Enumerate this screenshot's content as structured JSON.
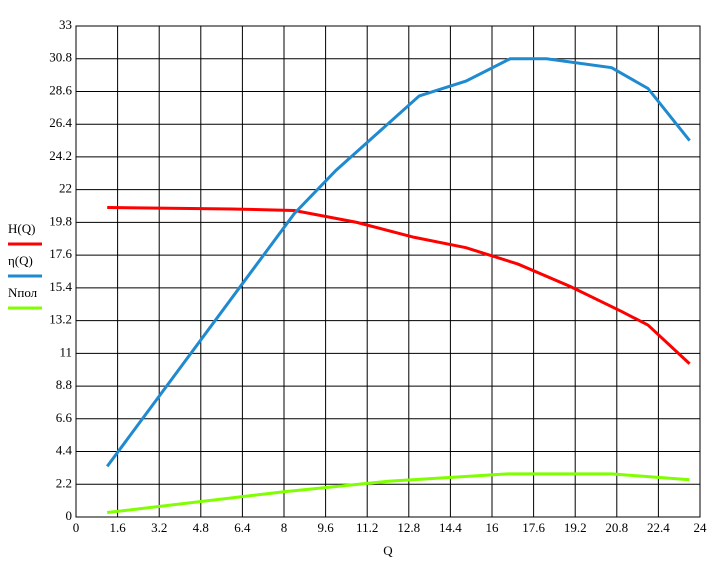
{
  "chart_data": {
    "type": "line",
    "x_label": "Q",
    "xlim": [
      0,
      24
    ],
    "xticks": [
      0,
      1.6,
      3.2,
      4.8,
      6.4,
      8,
      9.6,
      11.2,
      12.8,
      14.4,
      16,
      17.6,
      19.2,
      20.8,
      22.4,
      24
    ],
    "ylim": [
      0,
      33
    ],
    "yticks": [
      0,
      2.2,
      4.4,
      6.6,
      8.8,
      11,
      13.2,
      15.4,
      17.6,
      19.8,
      22,
      24.2,
      26.4,
      28.6,
      30.8,
      33
    ],
    "grid": true,
    "series": [
      {
        "name": "H(Q)",
        "color": "#ff0000",
        "x": [
          1.2,
          6,
          8.4,
          10.8,
          13,
          15,
          17,
          19,
          21,
          22,
          23.6
        ],
        "values": [
          20.8,
          20.7,
          20.6,
          19.8,
          18.8,
          18.1,
          17.0,
          15.5,
          13.8,
          12.9,
          10.3
        ]
      },
      {
        "name": "η(Q)",
        "color": "#1f8ad0",
        "x": [
          1.2,
          8.4,
          10,
          11.6,
          13.2,
          15,
          16.7,
          18.1,
          20.6,
          22,
          23.6
        ],
        "values": [
          3.4,
          20.4,
          23.3,
          25.8,
          28.3,
          29.3,
          30.8,
          30.8,
          30.2,
          28.8,
          25.3
        ]
      },
      {
        "name": "Nпол",
        "color": "#80ff00",
        "x": [
          1.2,
          8,
          12,
          16.6,
          20.6,
          23.6
        ],
        "values": [
          0.3,
          1.7,
          2.4,
          2.9,
          2.9,
          2.5
        ]
      }
    ]
  }
}
